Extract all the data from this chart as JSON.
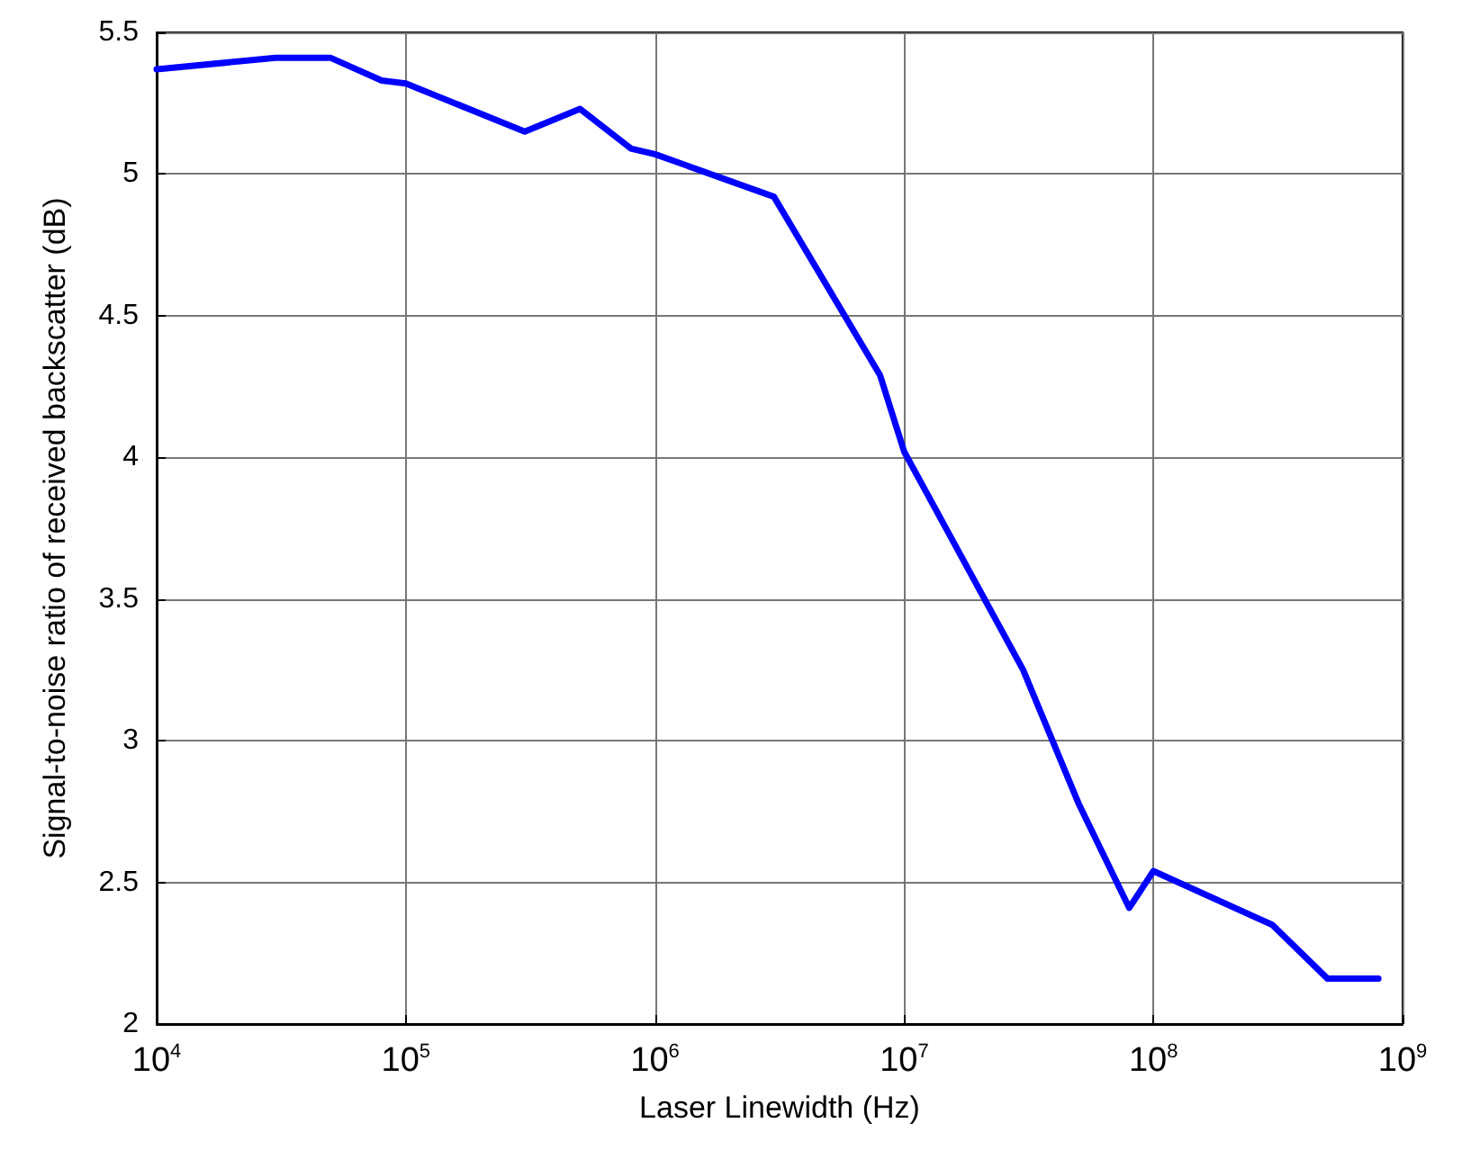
{
  "chart_data": {
    "type": "line",
    "xlabel": "Laser Linewidth (Hz)",
    "ylabel": "Signal-to-noise ratio of received backscatter (dB)",
    "log": "x",
    "grid": true,
    "marker": "none",
    "line_style": "solid",
    "x": [
      10000,
      30000,
      50000,
      80000,
      100000,
      300000,
      500000,
      800000,
      1000000,
      3000000,
      8000000,
      10000000,
      30000000,
      50000000,
      80000000,
      100000000,
      300000000,
      500000000,
      800000000
    ],
    "series": [
      {
        "color": "#0000ff",
        "values": [
          5.37,
          5.41,
          5.41,
          5.33,
          5.32,
          5.15,
          5.23,
          5.09,
          5.07,
          4.92,
          4.29,
          4.02,
          3.25,
          2.78,
          2.41,
          2.54,
          2.35,
          2.16,
          2.16
        ]
      }
    ],
    "xlim": [
      10000,
      1000000000
    ],
    "xticks": [
      {
        "value": 10000,
        "label": "10$^{4}$"
      },
      {
        "value": 100000,
        "label": "10$^{5}$"
      },
      {
        "value": 1000000,
        "label": "10$^{6}$"
      },
      {
        "value": 10000000,
        "label": "10$^{7}$"
      },
      {
        "value": 100000000,
        "label": "10$^{8}$"
      },
      {
        "value": 1000000000,
        "label": "10$^{9}$"
      }
    ],
    "ylim": [
      2,
      5.5
    ],
    "yticks": [
      2,
      2.5,
      3,
      3.5,
      4,
      4.5,
      5,
      5.5
    ]
  }
}
